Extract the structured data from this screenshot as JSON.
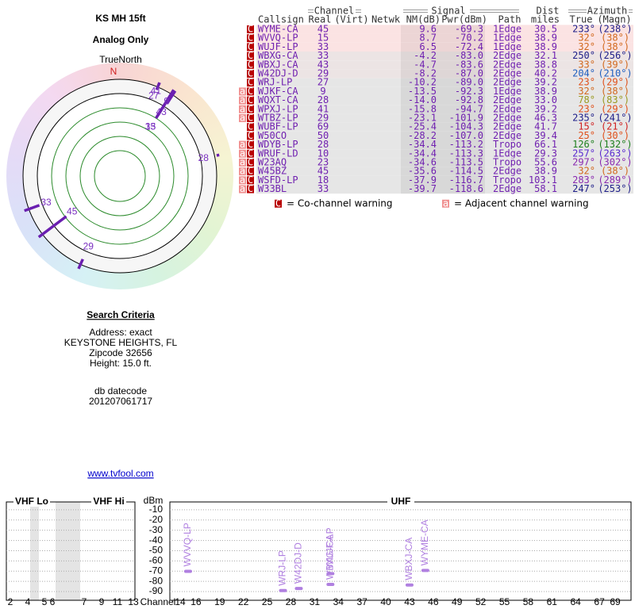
{
  "header": {
    "title": "KS MH 15ft",
    "subtitle": "Analog Only"
  },
  "polar": {
    "label": "TrueNorth",
    "north": "N",
    "points": [
      {
        "label": "45",
        "azimuth": 233,
        "nm": 9.6
      },
      {
        "label": "15",
        "azimuth": 32,
        "nm": 8.7
      },
      {
        "label": "33",
        "azimuth": 32,
        "nm": 6.5
      },
      {
        "label": "33",
        "azimuth": 250,
        "nm": -4.2
      },
      {
        "label": "43",
        "azimuth": 33,
        "nm": -4.7
      },
      {
        "label": "29",
        "azimuth": 204,
        "nm": -8.2
      },
      {
        "label": "27",
        "azimuth": 23,
        "nm": -10.2
      },
      {
        "label": "9",
        "azimuth": 32,
        "nm": -13.5
      },
      {
        "label": "28",
        "azimuth": 78,
        "nm": -14.0
      },
      {
        "label": "41",
        "azimuth": 23,
        "nm": -15.8
      }
    ]
  },
  "table": {
    "groups": {
      "channel": "Channel",
      "signal": "Signal",
      "dist": "Dist",
      "azimuth": "Azimuth"
    },
    "columns": {
      "callsign": "Callsign",
      "real": "Real",
      "virt": "(Virt)",
      "netwk": "Netwk",
      "nm": "NM(dB)",
      "pwr": "Pwr(dBm)",
      "path": "Path",
      "dist": "miles",
      "az": "True",
      "magn": "(Magn)"
    },
    "rows": [
      {
        "flags": [
          "C"
        ],
        "callsign": "WYME-CA",
        "real": "45",
        "nm": "9.6",
        "pwr": "-69.3",
        "path": "1Edge",
        "dist": "30.5",
        "az": "233°",
        "magn": "(238°)",
        "az_color": "#20208a",
        "bg": "#fbe3e3"
      },
      {
        "flags": [
          "C"
        ],
        "callsign": "WVVQ-LP",
        "real": "15",
        "nm": "8.7",
        "pwr": "-70.2",
        "path": "1Edge",
        "dist": "38.9",
        "az": "32°",
        "magn": "(38°)",
        "az_color": "#d2691e",
        "bg": "#fbe3e3"
      },
      {
        "flags": [
          "C"
        ],
        "callsign": "WUJF-LP",
        "real": "33",
        "nm": "6.5",
        "pwr": "-72.4",
        "path": "1Edge",
        "dist": "38.9",
        "az": "32°",
        "magn": "(38°)",
        "az_color": "#d2691e",
        "bg": "#fbe3e3"
      },
      {
        "flags": [
          "C"
        ],
        "callsign": "WBXG-CA",
        "real": "33",
        "nm": "-4.2",
        "pwr": "-83.0",
        "path": "2Edge",
        "dist": "32.1",
        "az": "250°",
        "magn": "(256°)",
        "az_color": "#20208a",
        "bg": "#ece4e4"
      },
      {
        "flags": [
          "C"
        ],
        "callsign": "WBXJ-CA",
        "real": "43",
        "nm": "-4.7",
        "pwr": "-83.6",
        "path": "2Edge",
        "dist": "38.8",
        "az": "33°",
        "magn": "(39°)",
        "az_color": "#d2691e",
        "bg": "#ece4e4"
      },
      {
        "flags": [
          "C"
        ],
        "callsign": "W42DJ-D",
        "real": "29",
        "nm": "-8.2",
        "pwr": "-87.0",
        "path": "2Edge",
        "dist": "40.2",
        "az": "204°",
        "magn": "(210°)",
        "az_color": "#2060c0",
        "bg": "#ece4e4"
      },
      {
        "flags": [
          "C"
        ],
        "callsign": "WRJ-LP",
        "real": "27",
        "nm": "-10.2",
        "pwr": "-89.0",
        "path": "2Edge",
        "dist": "39.2",
        "az": "23°",
        "magn": "(29°)",
        "az_color": "#e0501a",
        "bg": "#e6e6e6"
      },
      {
        "flags": [
          "a",
          "C"
        ],
        "callsign": "WJKF-CA",
        "real": "9",
        "nm": "-13.5",
        "pwr": "-92.3",
        "path": "1Edge",
        "dist": "38.9",
        "az": "32°",
        "magn": "(38°)",
        "az_color": "#d2691e",
        "bg": "#e6e6e6"
      },
      {
        "flags": [
          "a",
          "C"
        ],
        "callsign": "WQXT-CA",
        "real": "28",
        "nm": "-14.0",
        "pwr": "-92.8",
        "path": "2Edge",
        "dist": "33.0",
        "az": "78°",
        "magn": "(83°)",
        "az_color": "#9a9a20",
        "bg": "#e6e6e6"
      },
      {
        "flags": [
          "a",
          "C"
        ],
        "callsign": "WPXJ-LP",
        "real": "41",
        "nm": "-15.8",
        "pwr": "-94.7",
        "path": "2Edge",
        "dist": "39.2",
        "az": "23°",
        "magn": "(29°)",
        "az_color": "#e0501a",
        "bg": "#e6e6e6"
      },
      {
        "flags": [
          "a",
          "C"
        ],
        "callsign": "WTBZ-LP",
        "real": "29",
        "nm": "-23.1",
        "pwr": "-101.9",
        "path": "2Edge",
        "dist": "46.3",
        "az": "235°",
        "magn": "(241°)",
        "az_color": "#20208a",
        "bg": "#e6e6e6"
      },
      {
        "flags": [
          "C"
        ],
        "callsign": "WUBF-LP",
        "real": "69",
        "nm": "-25.4",
        "pwr": "-104.3",
        "path": "2Edge",
        "dist": "41.7",
        "az": "15°",
        "magn": "(21°)",
        "az_color": "#d02020",
        "bg": "#e6e6e6"
      },
      {
        "flags": [
          "C"
        ],
        "callsign": "W50CO",
        "real": "50",
        "nm": "-28.2",
        "pwr": "-107.0",
        "path": "2Edge",
        "dist": "39.4",
        "az": "25°",
        "magn": "(30°)",
        "az_color": "#e0501a",
        "bg": "#e6e6e6"
      },
      {
        "flags": [
          "a",
          "C"
        ],
        "callsign": "WDYB-LP",
        "real": "28",
        "nm": "-34.4",
        "pwr": "-113.2",
        "path": "Tropo",
        "dist": "66.1",
        "az": "126°",
        "magn": "(132°)",
        "az_color": "#208020",
        "bg": "#e6e6e6"
      },
      {
        "flags": [
          "a",
          "C"
        ],
        "callsign": "WRUF-LD",
        "real": "10",
        "nm": "-34.4",
        "pwr": "-113.3",
        "path": "1Edge",
        "dist": "29.3",
        "az": "257°",
        "magn": "(263°)",
        "az_color": "#5a2ad0",
        "bg": "#e6e6e6"
      },
      {
        "flags": [
          "a",
          "C"
        ],
        "callsign": "W23AQ",
        "real": "23",
        "nm": "-34.6",
        "pwr": "-113.5",
        "path": "Tropo",
        "dist": "55.6",
        "az": "297°",
        "magn": "(302°)",
        "az_color": "#8a2ab0",
        "bg": "#e6e6e6"
      },
      {
        "flags": [
          "a",
          "C"
        ],
        "callsign": "W45BZ",
        "real": "45",
        "nm": "-35.6",
        "pwr": "-114.5",
        "path": "2Edge",
        "dist": "38.9",
        "az": "32°",
        "magn": "(38°)",
        "az_color": "#d2691e",
        "bg": "#e6e6e6"
      },
      {
        "flags": [
          "a",
          "C"
        ],
        "callsign": "WSFD-LP",
        "real": "18",
        "nm": "-37.9",
        "pwr": "-116.7",
        "path": "Tropo",
        "dist": "103.1",
        "az": "283°",
        "magn": "(289°)",
        "az_color": "#8a2ab0",
        "bg": "#e6e6e6"
      },
      {
        "flags": [
          "a",
          "C"
        ],
        "callsign": "W33BL",
        "real": "33",
        "nm": "-39.7",
        "pwr": "-118.6",
        "path": "2Edge",
        "dist": "58.1",
        "az": "247°",
        "magn": "(253°)",
        "az_color": "#20208a",
        "bg": "#e6e6e6"
      }
    ]
  },
  "legend": {
    "co_icon": "C",
    "co_text": "= Co-channel warning",
    "adj_icon": "a",
    "adj_text": "= Adjacent channel warning"
  },
  "criteria": {
    "title": "Search Criteria",
    "lines": [
      "Address: exact",
      "KEYSTONE HEIGHTS, FL",
      "Zipcode 32656",
      "Height: 15.0 ft."
    ],
    "datecode_label": "db datecode",
    "datecode": "201207061717",
    "link": "www.tvfool.com"
  },
  "chart_data": {
    "type": "spectrum",
    "bands": [
      "VHF Lo",
      "VHF Hi",
      "UHF"
    ],
    "y_label": "dBm",
    "x_label": "Channel",
    "categories": [
      "WVVQ-LP",
      "WRJ-LP",
      "W42DJ-D",
      "WBXG-CA",
      "WUJF-LP",
      "WBXJ-CA",
      "WYME-CA"
    ],
    "x": [
      15,
      27,
      29,
      33,
      33,
      43,
      45
    ],
    "values": [
      -70.2,
      -89.0,
      -87.0,
      -83.0,
      -72.4,
      -83.6,
      -69.3
    ],
    "color": "#b080e0",
    "ylim": [
      -95,
      0
    ],
    "yticks": [
      -10,
      -20,
      -30,
      -40,
      -50,
      -60,
      -70,
      -80,
      -90
    ],
    "vhf_ticks": [
      2,
      4,
      5,
      6,
      7,
      9,
      11,
      13
    ],
    "xlim": [
      14,
      69
    ],
    "xticks": [
      14,
      16,
      19,
      22,
      25,
      28,
      31,
      34,
      37,
      40,
      43,
      46,
      49,
      52,
      55,
      58,
      61,
      64,
      67,
      69
    ],
    "grid": true
  }
}
